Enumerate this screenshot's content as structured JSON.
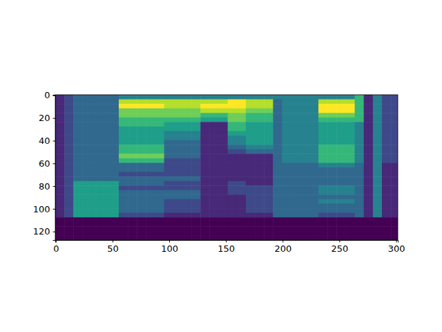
{
  "chart_data": {
    "type": "heatmap",
    "xlim": [
      -0.5,
      301.5
    ],
    "ylim": [
      127.5,
      -0.5
    ],
    "xticks": [
      0,
      50,
      100,
      150,
      200,
      250,
      300
    ],
    "yticks": [
      0,
      20,
      40,
      60,
      80,
      100,
      120
    ],
    "zlim": [
      0,
      9
    ],
    "x_edges": [
      -0.5,
      7.5,
      15.5,
      23.5,
      31.5,
      39.5,
      47.5,
      55.5,
      63.5,
      71.5,
      79.5,
      87.5,
      95.5,
      103.5,
      111.5,
      119.5,
      127.5,
      135.5,
      143.5,
      151.5,
      159.5,
      167.5,
      175.5,
      183.5,
      191.5,
      199.5,
      207.5,
      215.5,
      223.5,
      231.5,
      239.5,
      247.5,
      255.5,
      263.5,
      271.5,
      279.5,
      287.5,
      295.5,
      301.5
    ],
    "y_edges": [
      -0.5,
      3.5,
      7.5,
      11.5,
      15.5,
      19.5,
      23.5,
      27.5,
      31.5,
      35.5,
      39.5,
      43.5,
      47.5,
      51.5,
      55.5,
      59.5,
      63.5,
      67.5,
      71.5,
      75.5,
      79.5,
      83.5,
      87.5,
      91.5,
      95.5,
      99.5,
      103.5,
      107.5,
      111.5,
      115.5,
      119.5,
      123.5,
      127.5
    ],
    "cells": [
      [
        1,
        2,
        3,
        3,
        3,
        3,
        3,
        4,
        4,
        4,
        4,
        4,
        4,
        4,
        4,
        4,
        4,
        4,
        4,
        4,
        4,
        4,
        4,
        4,
        4,
        4,
        4,
        4,
        4,
        4,
        4,
        4,
        4,
        6,
        1,
        4,
        2,
        2
      ],
      [
        1,
        2,
        3,
        3,
        3,
        3,
        3,
        8,
        8,
        8,
        8,
        8,
        8,
        8,
        8,
        8,
        8,
        8,
        8,
        9,
        9,
        8,
        8,
        8,
        3,
        4,
        4,
        4,
        4,
        8,
        8,
        8,
        8,
        6,
        1,
        4,
        2,
        2
      ],
      [
        1,
        2,
        3,
        3,
        3,
        3,
        3,
        9,
        9,
        9,
        9,
        9,
        8,
        8,
        8,
        8,
        9,
        9,
        9,
        9,
        9,
        8,
        8,
        8,
        3,
        4,
        4,
        4,
        4,
        9,
        9,
        9,
        9,
        6,
        1,
        4,
        2,
        2
      ],
      [
        1,
        2,
        3,
        3,
        3,
        3,
        3,
        7,
        7,
        7,
        7,
        7,
        7,
        7,
        7,
        7,
        8,
        8,
        8,
        8,
        8,
        7,
        7,
        7,
        3,
        4,
        4,
        4,
        4,
        9,
        9,
        9,
        9,
        6,
        1,
        4,
        2,
        2
      ],
      [
        1,
        2,
        3,
        3,
        3,
        3,
        3,
        7,
        7,
        7,
        7,
        7,
        7,
        7,
        7,
        7,
        6,
        6,
        6,
        7,
        7,
        6,
        6,
        6,
        3,
        4,
        4,
        4,
        4,
        7,
        7,
        7,
        7,
        6,
        1,
        4,
        2,
        2
      ],
      [
        1,
        2,
        3,
        3,
        3,
        3,
        3,
        6,
        6,
        6,
        6,
        6,
        6,
        6,
        6,
        6,
        5,
        5,
        5,
        7,
        7,
        6,
        6,
        6,
        3,
        4,
        4,
        4,
        4,
        6,
        6,
        6,
        6,
        6,
        1,
        4,
        2,
        2
      ],
      [
        1,
        2,
        3,
        3,
        3,
        3,
        3,
        6,
        6,
        6,
        6,
        6,
        5,
        5,
        5,
        5,
        1,
        1,
        1,
        6,
        6,
        5,
        5,
        5,
        3,
        4,
        4,
        4,
        4,
        5,
        5,
        5,
        5,
        4,
        1,
        4,
        2,
        2
      ],
      [
        1,
        2,
        3,
        3,
        3,
        3,
        3,
        5,
        5,
        5,
        5,
        5,
        5,
        5,
        5,
        5,
        1,
        1,
        1,
        6,
        6,
        5,
        5,
        5,
        3,
        4,
        4,
        4,
        4,
        5,
        5,
        5,
        5,
        4,
        1,
        4,
        2,
        2
      ],
      [
        1,
        2,
        3,
        3,
        3,
        3,
        3,
        5,
        5,
        5,
        5,
        5,
        4,
        4,
        4,
        4,
        1,
        1,
        1,
        5,
        5,
        5,
        5,
        5,
        3,
        4,
        4,
        4,
        4,
        5,
        5,
        5,
        5,
        4,
        1,
        4,
        2,
        2
      ],
      [
        1,
        2,
        3,
        3,
        3,
        3,
        3,
        5,
        5,
        5,
        5,
        5,
        4,
        4,
        4,
        4,
        1,
        1,
        1,
        4,
        4,
        5,
        5,
        5,
        3,
        4,
        4,
        4,
        4,
        5,
        5,
        5,
        5,
        4,
        1,
        4,
        2,
        2
      ],
      [
        1,
        2,
        3,
        3,
        3,
        3,
        3,
        5,
        5,
        5,
        5,
        5,
        3,
        3,
        3,
        3,
        1,
        1,
        1,
        4,
        4,
        5,
        5,
        5,
        3,
        4,
        4,
        4,
        4,
        5,
        5,
        5,
        5,
        4,
        1,
        4,
        2,
        2
      ],
      [
        1,
        2,
        3,
        3,
        3,
        3,
        3,
        6,
        6,
        6,
        6,
        6,
        3,
        3,
        3,
        3,
        1,
        1,
        1,
        3,
        3,
        4,
        4,
        4,
        3,
        4,
        4,
        4,
        4,
        6,
        6,
        6,
        6,
        4,
        1,
        4,
        2,
        2
      ],
      [
        1,
        2,
        3,
        3,
        3,
        3,
        3,
        6,
        6,
        6,
        6,
        6,
        3,
        3,
        3,
        3,
        1,
        1,
        1,
        2,
        2,
        3,
        3,
        3,
        3,
        4,
        4,
        4,
        4,
        6,
        6,
        6,
        6,
        4,
        1,
        4,
        2,
        2
      ],
      [
        1,
        2,
        3,
        3,
        3,
        3,
        3,
        7,
        7,
        7,
        7,
        7,
        3,
        3,
        3,
        3,
        1,
        1,
        1,
        1,
        1,
        1,
        1,
        1,
        3,
        4,
        4,
        4,
        4,
        6,
        6,
        6,
        6,
        4,
        1,
        4,
        2,
        2
      ],
      [
        1,
        2,
        3,
        3,
        3,
        3,
        3,
        6,
        6,
        6,
        6,
        6,
        2,
        2,
        2,
        2,
        1,
        1,
        1,
        1,
        1,
        1,
        1,
        1,
        3,
        4,
        4,
        4,
        4,
        6,
        6,
        6,
        6,
        4,
        1,
        4,
        2,
        2
      ],
      [
        1,
        2,
        3,
        3,
        3,
        3,
        3,
        3,
        3,
        3,
        3,
        3,
        2,
        2,
        2,
        2,
        1,
        1,
        1,
        1,
        1,
        1,
        1,
        1,
        3,
        3,
        3,
        3,
        3,
        4,
        4,
        4,
        4,
        3,
        1,
        4,
        1,
        1
      ],
      [
        1,
        2,
        3,
        3,
        3,
        3,
        3,
        3,
        3,
        3,
        3,
        3,
        2,
        2,
        2,
        2,
        1,
        1,
        1,
        1,
        1,
        1,
        1,
        1,
        3,
        3,
        3,
        3,
        3,
        3,
        3,
        3,
        3,
        3,
        1,
        4,
        1,
        1
      ],
      [
        1,
        2,
        3,
        3,
        3,
        3,
        3,
        2,
        2,
        2,
        2,
        2,
        2,
        2,
        2,
        2,
        1,
        1,
        1,
        1,
        1,
        1,
        1,
        1,
        3,
        3,
        3,
        3,
        3,
        3,
        3,
        3,
        3,
        3,
        1,
        4,
        1,
        1
      ],
      [
        1,
        2,
        3,
        3,
        3,
        3,
        3,
        3,
        3,
        3,
        3,
        3,
        3,
        3,
        3,
        3,
        1,
        1,
        1,
        1,
        1,
        1,
        1,
        1,
        3,
        3,
        3,
        3,
        3,
        3,
        3,
        3,
        3,
        3,
        1,
        4,
        1,
        1
      ],
      [
        1,
        2,
        5,
        5,
        5,
        5,
        5,
        3,
        3,
        3,
        3,
        3,
        2,
        2,
        2,
        2,
        1,
        1,
        1,
        2,
        2,
        1,
        1,
        1,
        3,
        3,
        3,
        3,
        3,
        3,
        3,
        3,
        3,
        3,
        1,
        4,
        1,
        1
      ],
      [
        1,
        2,
        5,
        5,
        5,
        5,
        5,
        2,
        2,
        2,
        2,
        2,
        2,
        2,
        2,
        2,
        1,
        1,
        1,
        2,
        2,
        2,
        2,
        2,
        3,
        3,
        3,
        3,
        3,
        4,
        4,
        4,
        4,
        3,
        1,
        4,
        1,
        1
      ],
      [
        1,
        2,
        5,
        5,
        5,
        5,
        5,
        3,
        3,
        3,
        3,
        3,
        3,
        3,
        3,
        3,
        1,
        1,
        1,
        2,
        2,
        2,
        2,
        2,
        3,
        3,
        3,
        3,
        3,
        4,
        4,
        4,
        4,
        3,
        1,
        4,
        1,
        1
      ],
      [
        1,
        2,
        5,
        5,
        5,
        5,
        5,
        3,
        3,
        3,
        3,
        3,
        3,
        3,
        3,
        3,
        1,
        1,
        1,
        1,
        1,
        2,
        2,
        2,
        3,
        3,
        3,
        3,
        3,
        3,
        3,
        3,
        3,
        3,
        1,
        4,
        1,
        1
      ],
      [
        1,
        2,
        5,
        5,
        5,
        5,
        5,
        3,
        3,
        3,
        3,
        3,
        2,
        2,
        2,
        2,
        1,
        1,
        1,
        1,
        1,
        2,
        2,
        2,
        3,
        3,
        3,
        3,
        3,
        4,
        4,
        4,
        4,
        3,
        1,
        4,
        1,
        1
      ],
      [
        1,
        2,
        5,
        5,
        5,
        5,
        5,
        3,
        3,
        3,
        3,
        3,
        2,
        2,
        2,
        2,
        1,
        1,
        1,
        1,
        1,
        2,
        2,
        2,
        3,
        3,
        3,
        3,
        3,
        3,
        3,
        3,
        3,
        3,
        1,
        4,
        1,
        1
      ],
      [
        1,
        2,
        5,
        5,
        5,
        5,
        5,
        3,
        3,
        3,
        3,
        3,
        2,
        2,
        2,
        2,
        1,
        1,
        1,
        1,
        1,
        2,
        2,
        2,
        3,
        3,
        3,
        3,
        3,
        3,
        3,
        3,
        3,
        3,
        1,
        4,
        1,
        1
      ],
      [
        1,
        2,
        5,
        5,
        5,
        5,
        5,
        2,
        2,
        2,
        2,
        2,
        1,
        1,
        1,
        1,
        1,
        1,
        1,
        1,
        1,
        1,
        1,
        1,
        3,
        3,
        3,
        3,
        3,
        2,
        2,
        2,
        2,
        3,
        1,
        4,
        1,
        1
      ],
      [
        0,
        0,
        0,
        0,
        0,
        0,
        0,
        0,
        0,
        0,
        0,
        0,
        0,
        0,
        0,
        0,
        0,
        0,
        0,
        0,
        0,
        0,
        0,
        0,
        0,
        0,
        0,
        0,
        0,
        0,
        0,
        0,
        0,
        0,
        0,
        0,
        0,
        0
      ],
      [
        0,
        0,
        0,
        0,
        0,
        0,
        0,
        0,
        0,
        0,
        0,
        0,
        0,
        0,
        0,
        0,
        0,
        0,
        0,
        0,
        0,
        0,
        0,
        0,
        0,
        0,
        0,
        0,
        0,
        0,
        0,
        0,
        0,
        0,
        0,
        0,
        0,
        0
      ],
      [
        0,
        0,
        0,
        0,
        0,
        0,
        0,
        0,
        0,
        0,
        0,
        0,
        0,
        0,
        0,
        0,
        0,
        0,
        0,
        0,
        0,
        0,
        0,
        0,
        0,
        0,
        0,
        0,
        0,
        0,
        0,
        0,
        0,
        0,
        0,
        0,
        0,
        0
      ],
      [
        0,
        0,
        0,
        0,
        0,
        0,
        0,
        0,
        0,
        0,
        0,
        0,
        0,
        0,
        0,
        0,
        0,
        0,
        0,
        0,
        0,
        0,
        0,
        0,
        0,
        0,
        0,
        0,
        0,
        0,
        0,
        0,
        0,
        0,
        0,
        0,
        0,
        0
      ],
      [
        0,
        0,
        0,
        0,
        0,
        0,
        0,
        0,
        0,
        0,
        0,
        0,
        0,
        0,
        0,
        0,
        0,
        0,
        0,
        0,
        0,
        0,
        0,
        0,
        0,
        0,
        0,
        0,
        0,
        0,
        0,
        0,
        0,
        0,
        0,
        0,
        0,
        0
      ]
    ]
  }
}
